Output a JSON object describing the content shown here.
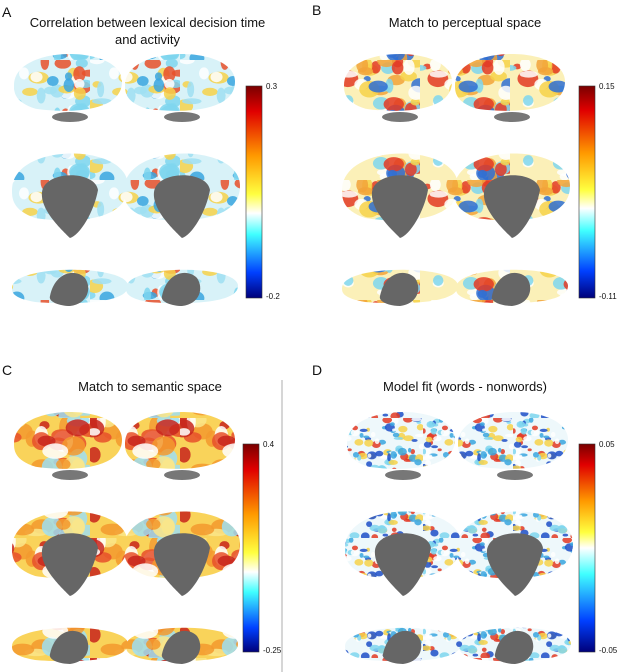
{
  "panels": [
    {
      "label": "A",
      "title": "Correlation between lexical decision time and activity",
      "colorbar": {
        "max": 0.3,
        "min": -0.2
      }
    },
    {
      "label": "B",
      "title": "Match to perceptual space",
      "colorbar": {
        "max": 0.15,
        "min": -0.11
      }
    },
    {
      "label": "C",
      "title": "Match to semantic space",
      "colorbar": {
        "max": 0.4,
        "min": -0.25
      }
    },
    {
      "label": "D",
      "title": "Model fit (words  - nonwords)",
      "colorbar": {
        "max": 0.05,
        "min": -0.05
      }
    }
  ]
}
